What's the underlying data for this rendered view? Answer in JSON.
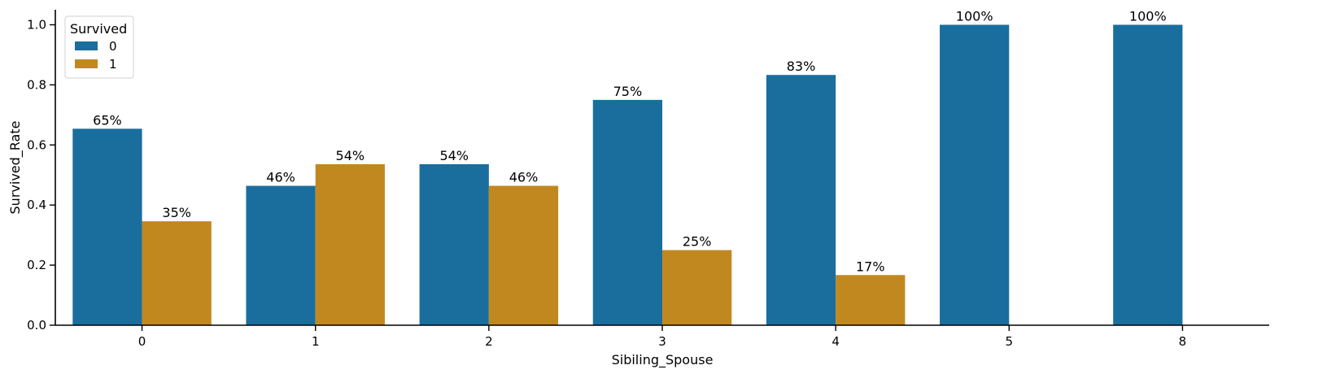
{
  "chart_data": {
    "type": "bar",
    "categories": [
      "0",
      "1",
      "2",
      "3",
      "4",
      "5",
      "8"
    ],
    "series": [
      {
        "name": "0",
        "color": "#1a6e9e",
        "values": [
          0.654,
          0.464,
          0.536,
          0.75,
          0.833,
          1.0,
          1.0
        ],
        "labels": [
          "65%",
          "46%",
          "54%",
          "75%",
          "83%",
          "100%",
          "100%"
        ]
      },
      {
        "name": "1",
        "color": "#c28820",
        "values": [
          0.346,
          0.536,
          0.464,
          0.25,
          0.167,
          null,
          null
        ],
        "labels": [
          "35%",
          "54%",
          "46%",
          "25%",
          "17%",
          "",
          ""
        ]
      }
    ],
    "xlabel": "Sibiling_Spouse",
    "ylabel": "Survived_Rate",
    "ylim": [
      0,
      1.05
    ],
    "yticks": [
      "0.0",
      "0.2",
      "0.4",
      "0.6",
      "0.8",
      "1.0"
    ],
    "legend": {
      "title": "Survived",
      "placement": "top-left"
    },
    "grid": false
  }
}
